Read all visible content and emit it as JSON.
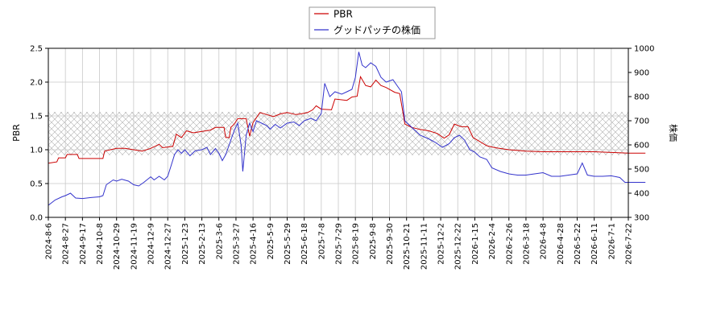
{
  "chart_data": {
    "type": "line",
    "legend": {
      "placement": "top-center"
    },
    "grid": true,
    "band": {
      "axis": "left",
      "range": [
        0.92,
        1.56
      ],
      "pattern": "cross-hatch"
    },
    "x_ticks": [
      "2024-8-6",
      "2024-8-27",
      "2024-9-17",
      "2024-10-8",
      "2024-10-29",
      "2024-11-19",
      "2024-12-9",
      "2024-12-27",
      "2025-1-23",
      "2025-2-13",
      "2025-3-6",
      "2025-3-27",
      "2025-4-16",
      "2025-5-9",
      "2025-5-29",
      "2025-6-18",
      "2025-7-8",
      "2025-7-29",
      "2025-8-19",
      "2025-9-8",
      "2025-9-30",
      "2025-10-21",
      "2025-11-11",
      "2025-12-2",
      "2025-12-22",
      "2026-1-15",
      "2026-2-4",
      "2026-2-26",
      "2026-3-18",
      "2026-4-8",
      "2026-4-28",
      "2026-5-22",
      "2026-6-11",
      "2026-7-1",
      "2026-7-22"
    ],
    "y_left": {
      "label": "PBR",
      "range": [
        0,
        2.5
      ],
      "ticks": [
        "0.0",
        "0.5",
        "1.0",
        "1.5",
        "2.0",
        "2.5"
      ]
    },
    "y_right": {
      "label": "株価",
      "range": [
        300,
        1000
      ],
      "ticks": [
        "300",
        "400",
        "500",
        "600",
        "700",
        "800",
        "900",
        "1000"
      ]
    },
    "series": [
      {
        "name": "PBR",
        "axis": "left",
        "color": "#cc0000",
        "points": [
          [
            0,
            0.8
          ],
          [
            0.5,
            0.82
          ],
          [
            0.6,
            0.88
          ],
          [
            1,
            0.88
          ],
          [
            1.1,
            0.93
          ],
          [
            1.7,
            0.93
          ],
          [
            1.8,
            0.87
          ],
          [
            3.2,
            0.87
          ],
          [
            3.3,
            0.98
          ],
          [
            4,
            1.02
          ],
          [
            4.5,
            1.02
          ],
          [
            5,
            1.0
          ],
          [
            5.5,
            0.98
          ],
          [
            6,
            1.02
          ],
          [
            6.5,
            1.08
          ],
          [
            6.7,
            1.03
          ],
          [
            7.3,
            1.05
          ],
          [
            7.5,
            1.23
          ],
          [
            7.8,
            1.18
          ],
          [
            8.1,
            1.28
          ],
          [
            8.5,
            1.25
          ],
          [
            9,
            1.27
          ],
          [
            9.5,
            1.29
          ],
          [
            9.8,
            1.33
          ],
          [
            10.3,
            1.33
          ],
          [
            10.4,
            1.18
          ],
          [
            10.6,
            1.18
          ],
          [
            10.7,
            1.33
          ],
          [
            10.9,
            1.38
          ],
          [
            11.1,
            1.46
          ],
          [
            11.6,
            1.46
          ],
          [
            11.8,
            1.2
          ],
          [
            12,
            1.4
          ],
          [
            12.4,
            1.55
          ],
          [
            12.8,
            1.52
          ],
          [
            13.2,
            1.49
          ],
          [
            13.6,
            1.53
          ],
          [
            14,
            1.55
          ],
          [
            14.5,
            1.52
          ],
          [
            14.8,
            1.53
          ],
          [
            15.2,
            1.55
          ],
          [
            15.5,
            1.59
          ],
          [
            15.7,
            1.65
          ],
          [
            16,
            1.6
          ],
          [
            16.6,
            1.59
          ],
          [
            16.8,
            1.75
          ],
          [
            17.5,
            1.73
          ],
          [
            17.8,
            1.78
          ],
          [
            18.1,
            1.79
          ],
          [
            18.3,
            2.08
          ],
          [
            18.6,
            1.95
          ],
          [
            18.9,
            1.93
          ],
          [
            19.2,
            2.03
          ],
          [
            19.5,
            1.95
          ],
          [
            19.8,
            1.92
          ],
          [
            20.3,
            1.85
          ],
          [
            20.6,
            1.83
          ],
          [
            20.9,
            1.38
          ],
          [
            21.3,
            1.33
          ],
          [
            21.8,
            1.3
          ],
          [
            22.3,
            1.28
          ],
          [
            22.8,
            1.24
          ],
          [
            23.2,
            1.17
          ],
          [
            23.5,
            1.22
          ],
          [
            23.8,
            1.38
          ],
          [
            24.2,
            1.34
          ],
          [
            24.6,
            1.34
          ],
          [
            24.9,
            1.18
          ],
          [
            25.3,
            1.12
          ],
          [
            25.7,
            1.06
          ],
          [
            26.2,
            1.03
          ],
          [
            27,
            1.0
          ],
          [
            28,
            0.98
          ],
          [
            29,
            0.97
          ],
          [
            30,
            0.97
          ],
          [
            31,
            0.97
          ],
          [
            32,
            0.97
          ],
          [
            33,
            0.96
          ],
          [
            34,
            0.95
          ],
          [
            35,
            0.95
          ]
        ]
      },
      {
        "name": "グッドパッチの株価",
        "axis": "right",
        "color": "#3333cc",
        "points": [
          [
            0,
            350
          ],
          [
            0.4,
            372
          ],
          [
            0.8,
            385
          ],
          [
            1,
            390
          ],
          [
            1.3,
            400
          ],
          [
            1.6,
            380
          ],
          [
            2,
            378
          ],
          [
            2.5,
            382
          ],
          [
            3,
            385
          ],
          [
            3.2,
            390
          ],
          [
            3.4,
            435
          ],
          [
            3.8,
            455
          ],
          [
            4,
            450
          ],
          [
            4.3,
            458
          ],
          [
            4.7,
            450
          ],
          [
            5,
            435
          ],
          [
            5.3,
            430
          ],
          [
            5.6,
            445
          ],
          [
            6,
            468
          ],
          [
            6.2,
            455
          ],
          [
            6.5,
            470
          ],
          [
            6.8,
            455
          ],
          [
            7,
            470
          ],
          [
            7.2,
            515
          ],
          [
            7.4,
            560
          ],
          [
            7.6,
            580
          ],
          [
            7.8,
            565
          ],
          [
            8,
            580
          ],
          [
            8.3,
            555
          ],
          [
            8.6,
            575
          ],
          [
            9,
            580
          ],
          [
            9.3,
            590
          ],
          [
            9.5,
            560
          ],
          [
            9.8,
            585
          ],
          [
            10,
            565
          ],
          [
            10.2,
            535
          ],
          [
            10.4,
            560
          ],
          [
            10.6,
            600
          ],
          [
            10.9,
            660
          ],
          [
            11.1,
            690
          ],
          [
            11.3,
            600
          ],
          [
            11.4,
            490
          ],
          [
            11.6,
            640
          ],
          [
            11.8,
            690
          ],
          [
            12,
            655
          ],
          [
            12.2,
            700
          ],
          [
            12.5,
            690
          ],
          [
            12.8,
            680
          ],
          [
            13,
            665
          ],
          [
            13.3,
            685
          ],
          [
            13.6,
            670
          ],
          [
            14,
            690
          ],
          [
            14.4,
            695
          ],
          [
            14.7,
            680
          ],
          [
            15,
            700
          ],
          [
            15.4,
            710
          ],
          [
            15.7,
            700
          ],
          [
            16,
            730
          ],
          [
            16.2,
            855
          ],
          [
            16.5,
            800
          ],
          [
            16.8,
            820
          ],
          [
            17.2,
            810
          ],
          [
            17.5,
            820
          ],
          [
            17.8,
            830
          ],
          [
            18,
            880
          ],
          [
            18.2,
            985
          ],
          [
            18.4,
            930
          ],
          [
            18.6,
            920
          ],
          [
            18.9,
            940
          ],
          [
            19.2,
            925
          ],
          [
            19.5,
            880
          ],
          [
            19.8,
            860
          ],
          [
            20.2,
            870
          ],
          [
            20.5,
            840
          ],
          [
            20.7,
            820
          ],
          [
            20.9,
            700
          ],
          [
            21.2,
            680
          ],
          [
            21.5,
            660
          ],
          [
            21.8,
            640
          ],
          [
            22.3,
            625
          ],
          [
            22.7,
            610
          ],
          [
            23.1,
            590
          ],
          [
            23.5,
            605
          ],
          [
            23.8,
            630
          ],
          [
            24.1,
            640
          ],
          [
            24.4,
            620
          ],
          [
            24.7,
            580
          ],
          [
            25,
            570
          ],
          [
            25.3,
            550
          ],
          [
            25.7,
            540
          ],
          [
            26,
            505
          ],
          [
            26.5,
            490
          ],
          [
            27,
            480
          ],
          [
            27.5,
            475
          ],
          [
            28,
            475
          ],
          [
            28.5,
            480
          ],
          [
            29,
            485
          ],
          [
            29.5,
            470
          ],
          [
            30,
            470
          ],
          [
            30.5,
            475
          ],
          [
            31,
            480
          ],
          [
            31.3,
            525
          ],
          [
            31.6,
            475
          ],
          [
            32,
            470
          ],
          [
            32.5,
            470
          ],
          [
            33,
            472
          ],
          [
            33.5,
            465
          ],
          [
            33.8,
            445
          ],
          [
            34.5,
            445
          ],
          [
            35,
            445
          ]
        ]
      }
    ]
  }
}
